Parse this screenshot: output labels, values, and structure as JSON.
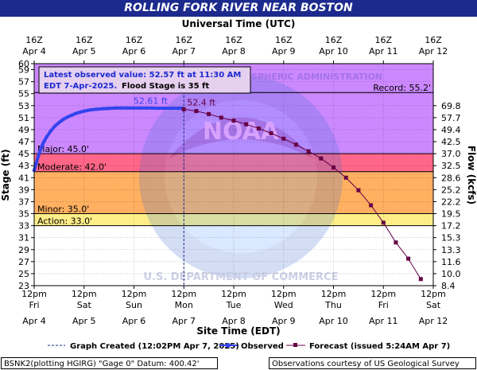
{
  "title": "ROLLING FORK RIVER NEAR BOSTON",
  "top_axis_title": "Universal Time (UTC)",
  "bottom_axis_title": "Site Time (EDT)",
  "left_axis_title": "Stage (ft)",
  "right_axis_title": "Flow (kcfs)",
  "info_box": {
    "line1": "Latest observed value: 52.57 ft at 11:30 AM",
    "line2_blue": "EDT 7-Apr-2025.",
    "line2_black": "Flood Stage is 35 ft"
  },
  "legend": {
    "graph_created": "Graph Created (12:02PM Apr 7, 2025)",
    "observed": "Observed",
    "forecast": "Forecast (issued 5:24AM Apr 7)"
  },
  "footer_left": "BSNK2(plotting HGIRG) \"Gage 0\" Datum: 400.42'",
  "footer_right": "Observations courtesy of US Geological Survey",
  "watermark": {
    "ring_text": "NATIONAL OCEANIC AND ATMOSPHERIC ADMINISTRATION",
    "center_text": "NOAA",
    "bottom_text": "U.S. DEPARTMENT OF COMMERCE"
  },
  "colors": {
    "title_bar": "#1c2a8e",
    "record_band": "#cc88ff",
    "major_band": "#ff6688",
    "moderate_band": "#ffb060",
    "minor_band": "#ffee88",
    "observed": "#3344ee",
    "forecast": "#660044",
    "info_text": "#1c2ad0"
  },
  "chart_data": {
    "type": "line",
    "title": "ROLLING FORK RIVER NEAR BOSTON",
    "xlabel": "Site Time (EDT)",
    "ylabel": "Stage (ft)",
    "y2label": "Flow (kcfs)",
    "ylim": [
      23,
      60
    ],
    "yticks": [
      23,
      25,
      27,
      29,
      31,
      33,
      35,
      37,
      39,
      41,
      43,
      45,
      47,
      49,
      51,
      53,
      55,
      57,
      59,
      60
    ],
    "flow_ticks": [
      {
        "stage": 53,
        "label": "69.8"
      },
      {
        "stage": 51,
        "label": "57.7"
      },
      {
        "stage": 49,
        "label": "49.4"
      },
      {
        "stage": 47,
        "label": "42.5"
      },
      {
        "stage": 45,
        "label": "37.0"
      },
      {
        "stage": 43,
        "label": "32.5"
      },
      {
        "stage": 41,
        "label": "28.6"
      },
      {
        "stage": 39,
        "label": "25.2"
      },
      {
        "stage": 37,
        "label": "22.2"
      },
      {
        "stage": 35,
        "label": "19.5"
      },
      {
        "stage": 33,
        "label": "17.2"
      },
      {
        "stage": 31,
        "label": "15.3"
      },
      {
        "stage": 29,
        "label": "13.3"
      },
      {
        "stage": 27,
        "label": "11.6"
      },
      {
        "stage": 25,
        "label": "10.0"
      },
      {
        "stage": 23,
        "label": "8.4"
      }
    ],
    "bottom_ticks": [
      {
        "hour": 0,
        "top": "12pm",
        "mid": "Fri",
        "date": "Apr 4"
      },
      {
        "hour": 24,
        "top": "12pm",
        "mid": "Sat",
        "date": "Apr 5"
      },
      {
        "hour": 48,
        "top": "12pm",
        "mid": "Sun",
        "date": "Apr 6"
      },
      {
        "hour": 72,
        "top": "12pm",
        "mid": "Mon",
        "date": "Apr 7"
      },
      {
        "hour": 96,
        "top": "12pm",
        "mid": "Tue",
        "date": "Apr 8"
      },
      {
        "hour": 120,
        "top": "12pm",
        "mid": "Wed",
        "date": "Apr 9"
      },
      {
        "hour": 144,
        "top": "12pm",
        "mid": "Thu",
        "date": "Apr 10"
      },
      {
        "hour": 168,
        "top": "12pm",
        "mid": "Fri",
        "date": "Apr 11"
      },
      {
        "hour": 192,
        "top": "12pm",
        "mid": "Sat",
        "date": "Apr 12"
      }
    ],
    "top_ticks": [
      {
        "hour": 0,
        "label": "16Z",
        "date": "Apr 4"
      },
      {
        "hour": 24,
        "label": "16Z",
        "date": "Apr 5"
      },
      {
        "hour": 48,
        "label": "16Z",
        "date": "Apr 6"
      },
      {
        "hour": 72,
        "label": "16Z",
        "date": "Apr 7"
      },
      {
        "hour": 96,
        "label": "16Z",
        "date": "Apr 8"
      },
      {
        "hour": 120,
        "label": "16Z",
        "date": "Apr 9"
      },
      {
        "hour": 144,
        "label": "16Z",
        "date": "Apr 10"
      },
      {
        "hour": 168,
        "label": "16Z",
        "date": "Apr 11"
      },
      {
        "hour": 192,
        "label": "16Z",
        "date": "Apr 12"
      }
    ],
    "flood_categories": [
      {
        "name": "Record",
        "stage": 55.2,
        "label": "Record: 55.2'"
      },
      {
        "name": "Major",
        "stage": 45.0,
        "label": "Major: 45.0'"
      },
      {
        "name": "Moderate",
        "stage": 42.0,
        "label": "Moderate: 42.0'"
      },
      {
        "name": "Minor",
        "stage": 35.0,
        "label": "Minor: 35.0'"
      },
      {
        "name": "Action",
        "stage": 33.0,
        "label": "Action: 33.0'"
      }
    ],
    "graph_created_hour": 72,
    "observed_peak_label": "52.61 ft",
    "forecast_peak_label": "52.4 ft",
    "series": [
      {
        "name": "Observed",
        "x": [
          0,
          1,
          2,
          3,
          4,
          5,
          6,
          8,
          10,
          12,
          14,
          16,
          18,
          20,
          22,
          24,
          27,
          30,
          33,
          36,
          39,
          42,
          45,
          48,
          51,
          54,
          57,
          60,
          63,
          66,
          69,
          71.5
        ],
        "y": [
          42.2,
          43.4,
          44.6,
          45.6,
          46.5,
          47.2,
          47.8,
          48.8,
          49.6,
          50.2,
          50.7,
          51.1,
          51.4,
          51.7,
          51.9,
          52.1,
          52.3,
          52.4,
          52.5,
          52.55,
          52.6,
          52.61,
          52.61,
          52.6,
          52.6,
          52.6,
          52.59,
          52.58,
          52.58,
          52.57,
          52.57,
          52.57
        ]
      },
      {
        "name": "Forecast",
        "x": [
          72,
          78,
          84,
          90,
          96,
          102,
          108,
          114,
          120,
          126,
          132,
          138,
          144,
          150,
          156,
          162,
          168,
          174,
          180,
          186
        ],
        "y": [
          52.4,
          52.1,
          51.6,
          51.0,
          50.5,
          49.9,
          49.2,
          48.4,
          47.5,
          46.5,
          45.4,
          44.2,
          42.7,
          41.0,
          38.9,
          36.4,
          33.5,
          30.2,
          27.5,
          24.1
        ]
      }
    ]
  }
}
